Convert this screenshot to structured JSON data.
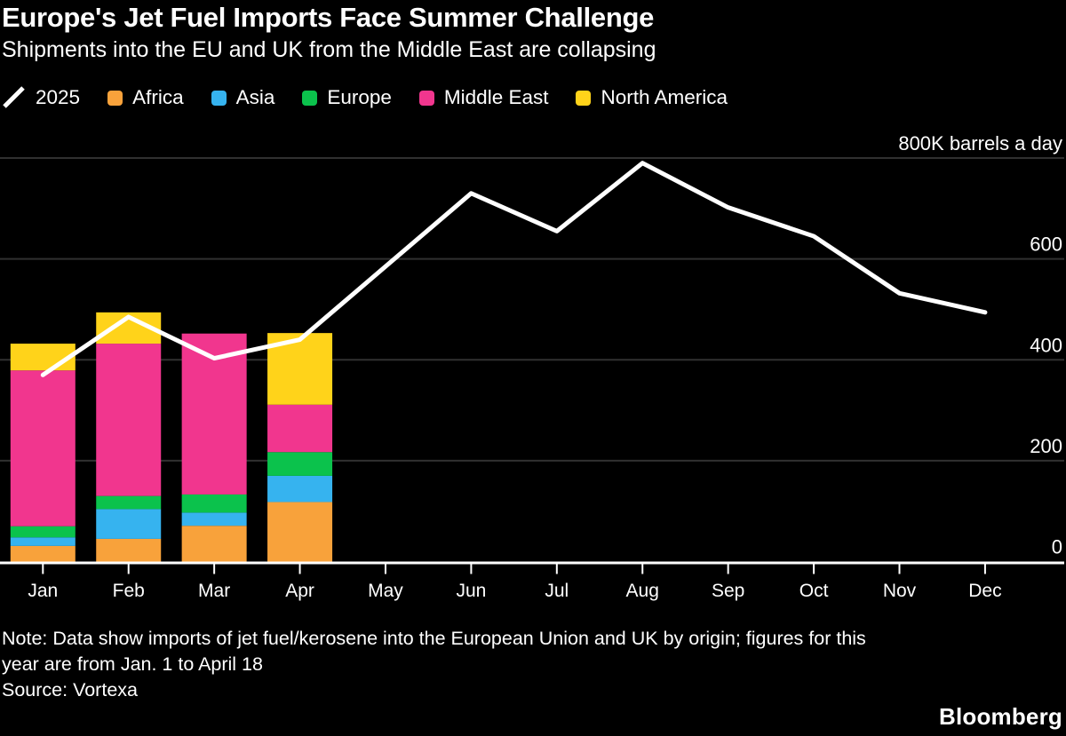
{
  "header": {
    "title": "Europe's Jet Fuel Imports Face Summer Challenge",
    "subtitle": "Shipments into the EU and UK from the Middle East are collapsing"
  },
  "legend": {
    "items": [
      {
        "label": "2025",
        "type": "line",
        "color": "#FFFFFF"
      },
      {
        "label": "Africa",
        "type": "swatch",
        "color": "#F8A23B"
      },
      {
        "label": "Asia",
        "type": "swatch",
        "color": "#36B3EF"
      },
      {
        "label": "Europe",
        "type": "swatch",
        "color": "#0BC24C"
      },
      {
        "label": "Middle East",
        "type": "swatch",
        "color": "#F1368E"
      },
      {
        "label": "North America",
        "type": "swatch",
        "color": "#FFD31A"
      }
    ]
  },
  "chart_data": {
    "type": "stacked-bar+line",
    "title": "Europe's Jet Fuel Imports Face Summer Challenge",
    "subtitle": "Shipments into the EU and UK from the Middle East are collapsing",
    "unit": "K barrels a day",
    "categories": [
      "Jan",
      "Feb",
      "Mar",
      "Apr",
      "May",
      "Jun",
      "Jul",
      "Aug",
      "Sep",
      "Oct",
      "Nov",
      "Dec"
    ],
    "bar_series": [
      {
        "name": "Africa",
        "color": "#F8A23B",
        "values": [
          31,
          45,
          71,
          118,
          null,
          null,
          null,
          null,
          null,
          null,
          null,
          null
        ]
      },
      {
        "name": "Asia",
        "color": "#36B3EF",
        "values": [
          17,
          59,
          26,
          52,
          null,
          null,
          null,
          null,
          null,
          null,
          null,
          null
        ]
      },
      {
        "name": "Europe",
        "color": "#0BC24C",
        "values": [
          22,
          26,
          36,
          47,
          null,
          null,
          null,
          null,
          null,
          null,
          null,
          null
        ]
      },
      {
        "name": "Middle East",
        "color": "#F1368E",
        "values": [
          309,
          302,
          319,
          94,
          null,
          null,
          null,
          null,
          null,
          null,
          null,
          null
        ]
      },
      {
        "name": "North America",
        "color": "#FFD31A",
        "values": [
          53,
          62,
          0,
          142,
          null,
          null,
          null,
          null,
          null,
          null,
          null,
          null
        ]
      }
    ],
    "bar_totals": [
      432,
      494,
      452,
      453,
      null,
      null,
      null,
      null,
      null,
      null,
      null,
      null
    ],
    "line_series": {
      "name": "2025",
      "color": "#FFFFFF",
      "values": [
        370,
        485,
        403,
        440,
        585,
        730,
        655,
        790,
        702,
        645,
        532,
        494
      ]
    },
    "yticks": [
      {
        "value": 0,
        "label": "0"
      },
      {
        "value": 200,
        "label": "200"
      },
      {
        "value": 400,
        "label": "400"
      },
      {
        "value": 600,
        "label": "600"
      },
      {
        "value": 800,
        "label": "800K barrels a day"
      }
    ],
    "ylim": [
      0,
      800
    ],
    "grid": "horizontal",
    "legend_position": "top-left",
    "gridline_color": "#303030",
    "axis_color": "#FFFFFF"
  },
  "footer": {
    "note_lines": [
      "Note: Data show imports of jet fuel/kerosene into the European Union and UK by origin; figures for this",
      "year are from Jan. 1 to April 18"
    ],
    "source": "Source: Vortexa",
    "brand": "Bloomberg"
  }
}
